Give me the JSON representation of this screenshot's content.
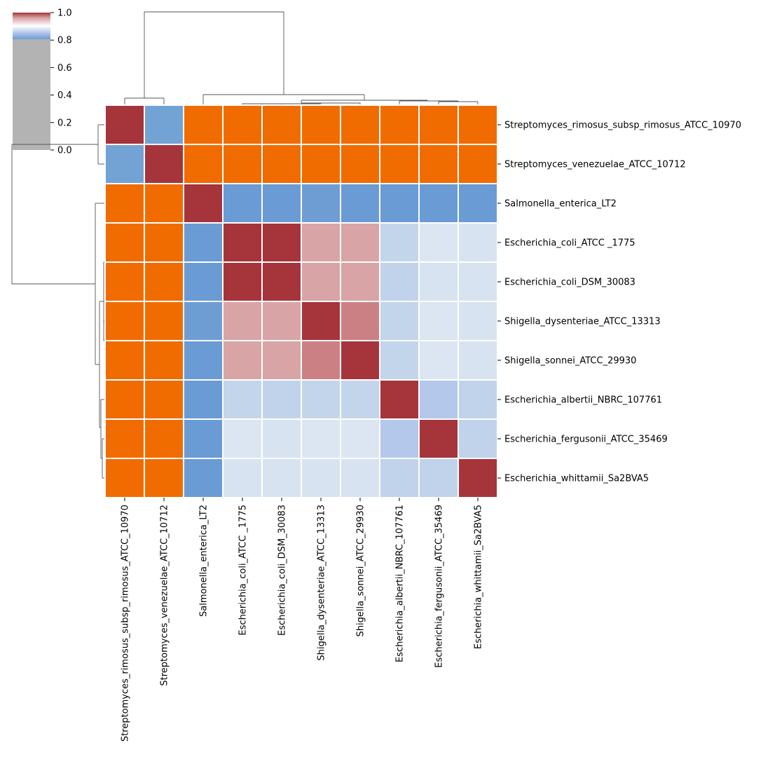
{
  "chart_data": {
    "type": "heatmap",
    "title": "",
    "labels": [
      "Streptomyces_rimosus_subsp_rimosus_ATCC_10970",
      "Streptomyces_venezuelae_ATCC_10712",
      "Salmonella_enterica_LT2",
      "Escherichia_coli_ATCC _1775",
      "Escherichia_coli_DSM_30083",
      "Shigella_dysenteriae_ATCC_13313",
      "Shigella_sonnei_ATCC_29930",
      "Escherichia_albertii_NBRC_107761",
      "Escherichia_fergusonii_ATCC_35469",
      "Escherichia_whittamii_Sa2BVA5"
    ],
    "cell_colors": [
      [
        "#a6343b",
        "#73a2d5",
        "#f06c00",
        "#f06c00",
        "#f06c00",
        "#f06c00",
        "#f06c00",
        "#f06c00",
        "#f06c00",
        "#f06c00"
      ],
      [
        "#73a2d5",
        "#a6343b",
        "#f06c00",
        "#f06c00",
        "#f06c00",
        "#f06c00",
        "#f06c00",
        "#f06c00",
        "#f06c00",
        "#f06c00"
      ],
      [
        "#f06c00",
        "#f06c00",
        "#a6343b",
        "#6a9bd4",
        "#6a9bd4",
        "#6e9dd4",
        "#6a9bd4",
        "#6a9bd4",
        "#6a9bd4",
        "#6a9bd4"
      ],
      [
        "#f06c00",
        "#f06c00",
        "#6a9bd4",
        "#a6343b",
        "#a6343b",
        "#d8a4a6",
        "#d8a4a6",
        "#c3d5ea",
        "#dce6f2",
        "#d8e3f1"
      ],
      [
        "#f06c00",
        "#f06c00",
        "#6a9bd4",
        "#a6343b",
        "#a6343b",
        "#d8a4a6",
        "#d8a4a6",
        "#c0d3ea",
        "#d8e3f1",
        "#d8e3f1"
      ],
      [
        "#f06c00",
        "#f06c00",
        "#6e9dd4",
        "#d8a4a6",
        "#d8a4a6",
        "#a6343b",
        "#cb8184",
        "#c3d5ea",
        "#dce6f2",
        "#d8e3f1"
      ],
      [
        "#f06c00",
        "#f06c00",
        "#6a9bd4",
        "#d8a4a6",
        "#d8a4a6",
        "#cb8184",
        "#a6343b",
        "#c3d5ea",
        "#dce6f2",
        "#d8e3f1"
      ],
      [
        "#f06c00",
        "#f06c00",
        "#6a9bd4",
        "#c3d5ea",
        "#c0d3ea",
        "#c3d5ea",
        "#c3d5ea",
        "#a6343b",
        "#b3c8eb",
        "#c0d3ea"
      ],
      [
        "#f06c00",
        "#f06c00",
        "#6a9bd4",
        "#dce6f2",
        "#d8e3f1",
        "#dce6f2",
        "#dce6f2",
        "#b3c8eb",
        "#a6343b",
        "#c0d3ea"
      ],
      [
        "#f06c00",
        "#f06c00",
        "#6a9bd4",
        "#d8e3f1",
        "#d8e3f1",
        "#d8e3f1",
        "#d8e3f1",
        "#c0d3ea",
        "#c0d3ea",
        "#a6343b"
      ]
    ],
    "colorbar": {
      "ticks": [
        1.0,
        0.8,
        0.6,
        0.4,
        0.2,
        0.0
      ],
      "tick_labels": [
        "1.0",
        "0.8",
        "0.6",
        "0.4",
        "0.2",
        "0.0"
      ],
      "range": [
        0,
        1
      ],
      "gray_below": 0.8,
      "gray_color": "#b3b3b3",
      "gradient_stops": [
        "#a6343b",
        "#ffffff",
        "#6a9bd4"
      ]
    },
    "grid": false,
    "legend": "colorbar top-left"
  }
}
